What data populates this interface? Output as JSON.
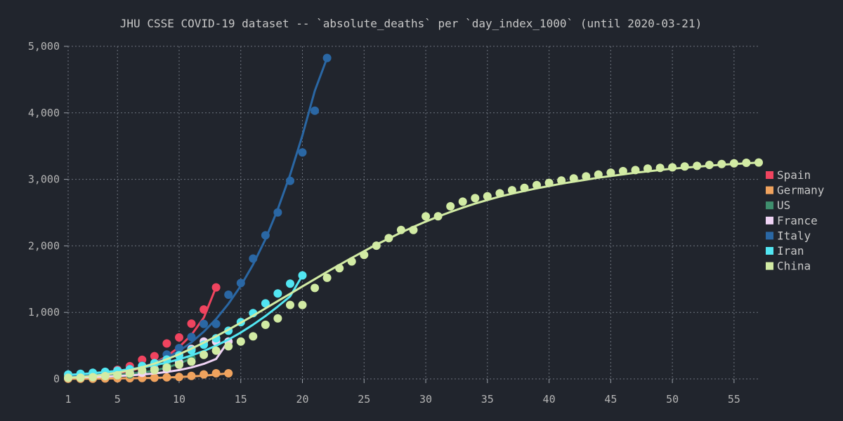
{
  "chart_data": {
    "type": "scatter",
    "title": "JHU CSSE COVID-19 dataset -- `absolute_deaths` per `day_index_1000` (until 2020-03-21)",
    "xlabel": "",
    "ylabel": "",
    "xlim": [
      1,
      57
    ],
    "ylim": [
      0,
      5000
    ],
    "x_ticks": [
      1,
      5,
      10,
      15,
      20,
      25,
      30,
      35,
      40,
      45,
      50,
      55
    ],
    "y_ticks": [
      0,
      1000,
      2000,
      3000,
      4000,
      5000
    ],
    "y_tick_labels": [
      "0",
      "1,000",
      "2,000",
      "3,000",
      "4,000",
      "5,000"
    ],
    "grid": true,
    "legend_position": "right",
    "series": [
      {
        "name": "Spain",
        "color": "#f0445f",
        "x": [
          1,
          2,
          3,
          4,
          5,
          6,
          7,
          8,
          9,
          10,
          11,
          12,
          13
        ],
        "y": [
          17,
          35,
          47,
          55,
          136,
          191,
          288,
          342,
          533,
          623,
          830,
          1043,
          1375
        ],
        "fit": [
          20,
          28,
          40,
          57,
          84,
          120,
          170,
          240,
          340,
          480,
          660,
          920,
          1380
        ]
      },
      {
        "name": "Germany",
        "color": "#f0a35e",
        "x": [
          1,
          2,
          3,
          4,
          5,
          6,
          7,
          8,
          9,
          10,
          11,
          12,
          13,
          14
        ],
        "y": [
          2,
          3,
          3,
          6,
          9,
          11,
          13,
          17,
          24,
          28,
          44,
          67,
          84,
          84
        ],
        "fit": [
          2,
          3,
          4,
          5,
          7,
          9,
          12,
          16,
          21,
          28,
          37,
          49,
          64,
          84
        ]
      },
      {
        "name": "US",
        "color": "#3f8f6e",
        "x": [
          1,
          2,
          3,
          4,
          5,
          6,
          7,
          8,
          9,
          10,
          11
        ],
        "y": [
          30,
          36,
          40,
          47,
          57,
          68,
          107,
          150,
          205,
          260,
          309
        ],
        "fit": [
          30,
          35,
          42,
          50,
          60,
          75,
          95,
          125,
          170,
          230,
          310
        ]
      },
      {
        "name": "France",
        "color": "#f0d4f5",
        "x": [
          1,
          2,
          3,
          4,
          5,
          6,
          7,
          8,
          9,
          10,
          11,
          12,
          13,
          14
        ],
        "y": [
          19,
          33,
          48,
          48,
          79,
          91,
          91,
          148,
          148,
          243,
          450,
          562,
          562,
          562
        ],
        "fit": [
          20,
          24,
          29,
          35,
          43,
          53,
          66,
          82,
          104,
          133,
          172,
          226,
          300,
          570
        ]
      },
      {
        "name": "Italy",
        "color": "#2a67a4",
        "x": [
          1,
          2,
          3,
          4,
          5,
          6,
          7,
          8,
          9,
          10,
          11,
          12,
          13,
          14,
          15,
          16,
          17,
          18,
          19,
          20,
          21,
          22
        ],
        "y": [
          29,
          34,
          52,
          79,
          107,
          148,
          197,
          233,
          366,
          463,
          631,
          827,
          827,
          1266,
          1441,
          1809,
          2158,
          2503,
          2978,
          3405,
          4032,
          4825
        ],
        "fit": [
          30,
          40,
          55,
          75,
          100,
          135,
          180,
          240,
          320,
          420,
          550,
          710,
          900,
          1130,
          1400,
          1720,
          2100,
          2550,
          3070,
          3660,
          4330,
          4825
        ]
      },
      {
        "name": "Iran",
        "color": "#52e6f2",
        "x": [
          1,
          2,
          3,
          4,
          5,
          6,
          7,
          8,
          9,
          10,
          11,
          12,
          13,
          14,
          15,
          16,
          17,
          18,
          19,
          20
        ],
        "y": [
          66,
          77,
          92,
          107,
          124,
          145,
          194,
          237,
          291,
          354,
          429,
          514,
          611,
          724,
          853,
          988,
          1135,
          1284,
          1433,
          1556
        ],
        "fit": [
          60,
          72,
          86,
          102,
          121,
          144,
          172,
          206,
          246,
          294,
          352,
          420,
          500,
          592,
          697,
          815,
          945,
          1088,
          1240,
          1556
        ]
      },
      {
        "name": "China",
        "color": "#d2eba4",
        "x": [
          1,
          2,
          3,
          4,
          5,
          6,
          7,
          8,
          9,
          10,
          11,
          12,
          13,
          14,
          15,
          16,
          17,
          18,
          19,
          20,
          21,
          22,
          23,
          24,
          25,
          26,
          27,
          28,
          29,
          30,
          31,
          32,
          33,
          34,
          35,
          36,
          37,
          38,
          39,
          40,
          41,
          42,
          43,
          44,
          45,
          46,
          47,
          48,
          49,
          50,
          51,
          52,
          53,
          54,
          55,
          56,
          57
        ],
        "y": [
          17,
          18,
          26,
          42,
          56,
          82,
          131,
          133,
          171,
          213,
          259,
          361,
          425,
          490,
          562,
          639,
          813,
          910,
          1112,
          1112,
          1367,
          1520,
          1663,
          1766,
          1864,
          2003,
          2116,
          2238,
          2238,
          2443,
          2445,
          2595,
          2665,
          2717,
          2746,
          2790,
          2837,
          2872,
          2914,
          2947,
          2983,
          3015,
          3044,
          3072,
          3100,
          3123,
          3139,
          3161,
          3172,
          3180,
          3193,
          3203,
          3217,
          3230,
          3241,
          3249,
          3253
        ],
        "fit": [
          20,
          30,
          45,
          65,
          95,
          130,
          175,
          230,
          295,
          370,
          455,
          545,
          640,
          740,
          845,
          950,
          1060,
          1170,
          1280,
          1390,
          1500,
          1610,
          1715,
          1820,
          1920,
          2020,
          2110,
          2200,
          2285,
          2365,
          2440,
          2510,
          2575,
          2635,
          2690,
          2740,
          2785,
          2825,
          2865,
          2900,
          2935,
          2965,
          2995,
          3025,
          3050,
          3075,
          3100,
          3120,
          3140,
          3160,
          3175,
          3190,
          3205,
          3220,
          3230,
          3242,
          3253
        ]
      }
    ]
  }
}
